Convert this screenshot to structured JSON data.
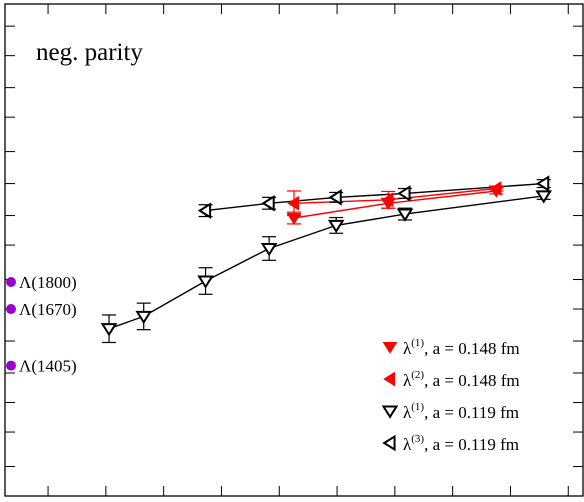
{
  "chart_data": {
    "type": "scatter",
    "title": "neg. parity",
    "xlabel": "",
    "ylabel": "",
    "xlim": [
      0,
      1
    ],
    "ylim": [
      0,
      1
    ],
    "x_ticks": [
      0.0,
      0.0745,
      0.1745,
      0.2745,
      0.3745,
      0.4745,
      0.5745,
      0.6745,
      0.7745,
      0.8745,
      0.9745
    ],
    "y_ticks": [
      0.06,
      0.13,
      0.19,
      0.25,
      0.315,
      0.38,
      0.44,
      0.51,
      0.57,
      0.635,
      0.7,
      0.77,
      0.83,
      0.895,
      0.955
    ],
    "grid": false,
    "legend_position": "bottom-right",
    "series": [
      {
        "name": "λ(1), a = 0.148 fm",
        "label_main": "λ",
        "label_sup": "(1)",
        "label_rest": ", a = 0.148 fm",
        "color": "#ff0000",
        "marker": "triangle-down-filled",
        "points": [
          {
            "x": 0.5,
            "y": 0.565,
            "err": 0.012
          },
          {
            "x": 0.663,
            "y": 0.595,
            "err": 0.01
          },
          {
            "x": 0.85,
            "y": 0.62,
            "err": 0.006
          }
        ]
      },
      {
        "name": "λ(2), a = 0.148 fm",
        "label_main": "λ",
        "label_sup": "(2)",
        "label_rest": ", a = 0.148 fm",
        "color": "#ff0000",
        "marker": "triangle-left-filled",
        "points": [
          {
            "x": 0.5,
            "y": 0.595,
            "err": 0.025
          },
          {
            "x": 0.663,
            "y": 0.602,
            "err": 0.017
          },
          {
            "x": 0.85,
            "y": 0.625,
            "err": 0.005
          }
        ]
      },
      {
        "name": "λ(1), a = 0.119 fm",
        "label_main": "λ",
        "label_sup": "(1)",
        "label_rest": ", a = 0.119 fm",
        "color": "#000000",
        "marker": "triangle-down-open",
        "points": [
          {
            "x": 0.18,
            "y": 0.34,
            "err": 0.028
          },
          {
            "x": 0.24,
            "y": 0.365,
            "err": 0.027
          },
          {
            "x": 0.347,
            "y": 0.437,
            "err": 0.027
          },
          {
            "x": 0.457,
            "y": 0.503,
            "err": 0.024
          },
          {
            "x": 0.573,
            "y": 0.55,
            "err": 0.016
          },
          {
            "x": 0.692,
            "y": 0.573,
            "err": 0.012
          },
          {
            "x": 0.932,
            "y": 0.61,
            "err": 0.007
          }
        ]
      },
      {
        "name": "λ(3), a = 0.119 fm",
        "label_main": "λ",
        "label_sup": "(3)",
        "label_rest": ", a = 0.119 fm",
        "color": "#000000",
        "marker": "triangle-left-open",
        "points": [
          {
            "x": 0.347,
            "y": 0.58,
            "err": 0.012
          },
          {
            "x": 0.457,
            "y": 0.595,
            "err": 0.012
          },
          {
            "x": 0.573,
            "y": 0.607,
            "err": 0.01
          },
          {
            "x": 0.692,
            "y": 0.615,
            "err": 0.01
          },
          {
            "x": 0.932,
            "y": 0.635,
            "err": 0.008
          }
        ]
      }
    ],
    "resonances": [
      {
        "label": "Λ(1800)",
        "y": 0.435
      },
      {
        "label": "Λ(1670)",
        "y": 0.38
      },
      {
        "label": "Λ(1405)",
        "y": 0.265
      }
    ]
  },
  "colors": {
    "red": "#ff0000",
    "black": "#000000",
    "resonance": "#9900cc"
  }
}
